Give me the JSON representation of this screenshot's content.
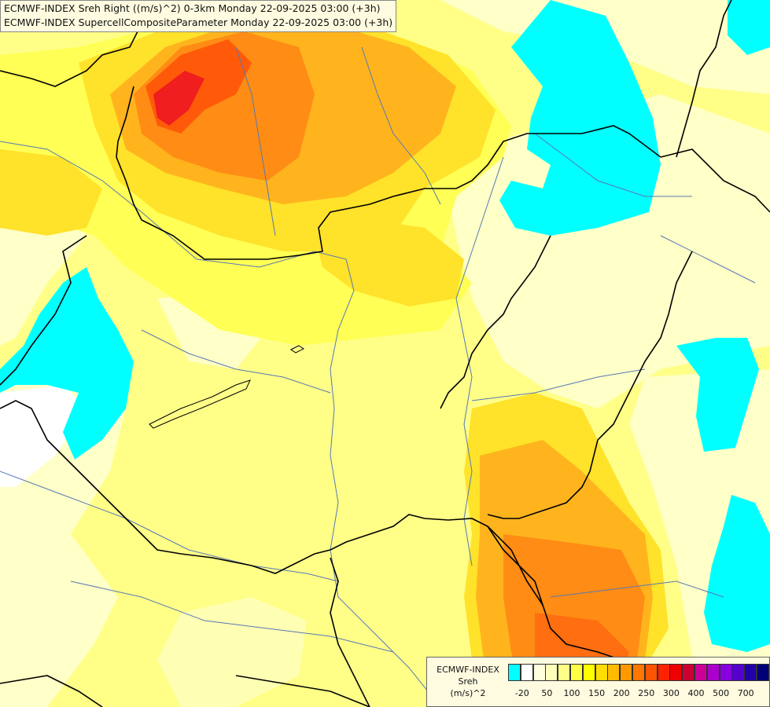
{
  "header": {
    "line1": "ECMWF-INDEX Sreh Right ((m/s)^2) 0-3km Monday 22-09-2025 03:00 (+3h)",
    "line2": "ECMWF-INDEX SupercellCompositeParameter Monday 22-09-2025 03:00 (+3h)"
  },
  "legend": {
    "title_1": "ECMWF-INDEX",
    "title_2": "Sreh",
    "title_3": "(m/s)^2",
    "colors": [
      "#00ffff",
      "#ffffff",
      "#ffffdd",
      "#ffffbb",
      "#ffff88",
      "#ffff44",
      "#ffff00",
      "#ffdd00",
      "#ffbb00",
      "#ff9900",
      "#ff7700",
      "#ff5500",
      "#ff2200",
      "#ee0000",
      "#cc0033",
      "#cc0099",
      "#aa00cc",
      "#8800dd",
      "#5500cc",
      "#2200aa",
      "#000077"
    ],
    "ticks": [
      "-20",
      "50",
      "100",
      "150",
      "200",
      "250",
      "300",
      "400",
      "500",
      "700"
    ]
  },
  "colors": {
    "cyan": "#00ffff",
    "pale_yellow": "#ffffb4",
    "yellow": "#ffff55",
    "gold": "#ffe22a",
    "orange": "#ffb41e",
    "dark_orange": "#ff8c14",
    "red_orange": "#ff5a0a",
    "red": "#f01e1e",
    "border_line": "#000000",
    "river_line": "#5878b4"
  }
}
